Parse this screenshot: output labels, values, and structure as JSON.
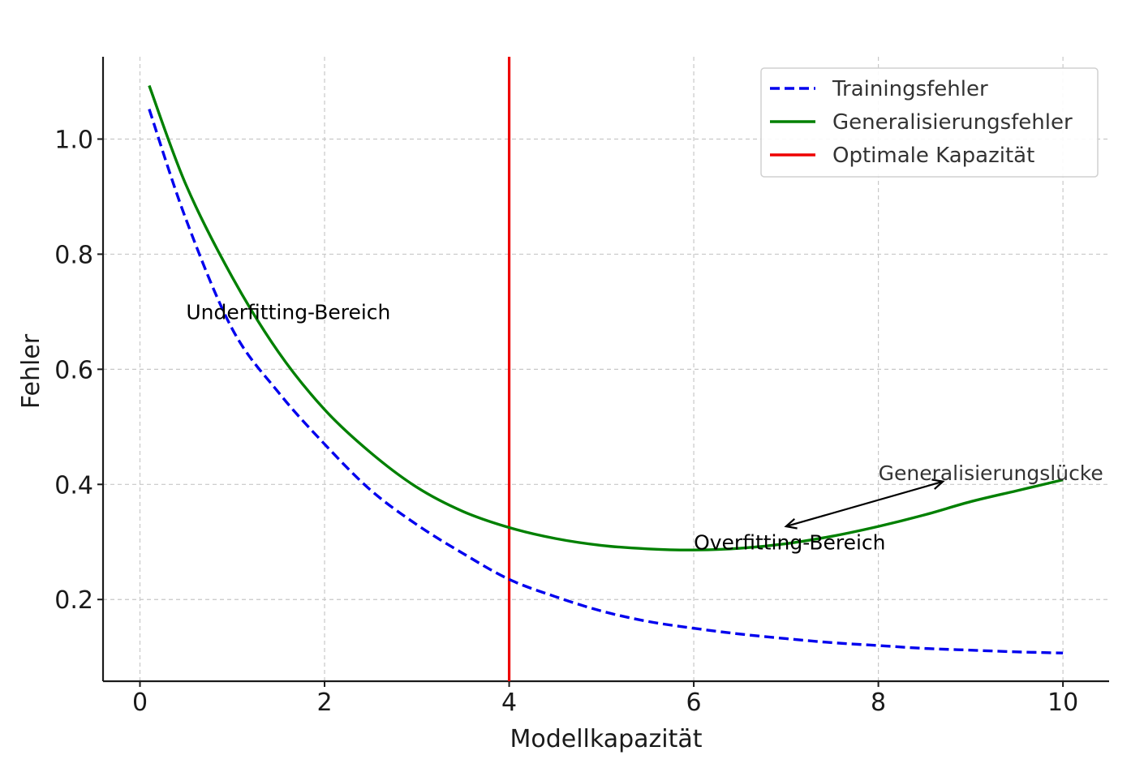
{
  "chart_data": {
    "type": "line",
    "title": "",
    "xlabel": "Modellkapazität",
    "ylabel": "Fehler",
    "xlim": [
      -0.4,
      10.5
    ],
    "ylim": [
      0.058,
      1.143
    ],
    "xticks": [
      0,
      2,
      4,
      6,
      8,
      10
    ],
    "yticks": [
      0.2,
      0.4,
      0.6,
      0.8,
      1.0
    ],
    "xtick_labels": [
      "0",
      "2",
      "4",
      "6",
      "8",
      "10"
    ],
    "ytick_labels": [
      "0.2",
      "0.4",
      "0.6",
      "0.8",
      "1.0"
    ],
    "grid": true,
    "legend_position": "top-right",
    "x": [
      0.1,
      0.5,
      1,
      1.5,
      2,
      2.5,
      3,
      3.5,
      4,
      4.5,
      5,
      5.5,
      6,
      6.5,
      7,
      7.5,
      8,
      8.5,
      9,
      9.5,
      10
    ],
    "series": [
      {
        "name": "Trainingsfehler",
        "color": "#0000ee",
        "style": "dashed",
        "values": [
          1.052,
          0.86,
          0.67,
          0.56,
          0.47,
          0.39,
          0.33,
          0.28,
          0.235,
          0.205,
          0.18,
          0.162,
          0.15,
          0.14,
          0.132,
          0.125,
          0.12,
          0.115,
          0.112,
          0.109,
          0.107
        ]
      },
      {
        "name": "Generalisierungsfehler",
        "color": "#008000",
        "style": "solid",
        "values": [
          1.093,
          0.92,
          0.76,
          0.63,
          0.53,
          0.455,
          0.395,
          0.353,
          0.325,
          0.306,
          0.294,
          0.288,
          0.286,
          0.289,
          0.297,
          0.31,
          0.327,
          0.347,
          0.37,
          0.389,
          0.408
        ]
      }
    ],
    "vlines": [
      {
        "name": "Optimale Kapazität",
        "x": 4,
        "color": "#ee0000"
      }
    ],
    "annotations": [
      {
        "text": "Underfitting-Bereich",
        "x": 0.5,
        "y": 0.7
      },
      {
        "text": "Overfitting-Bereich",
        "x": 6,
        "y": 0.3
      },
      {
        "text": "Generalisierungslücke",
        "x": 8,
        "y": 0.42,
        "arrow_from": [
          7.0,
          0.327
        ],
        "arrow_to": [
          8.7,
          0.405
        ]
      }
    ]
  }
}
